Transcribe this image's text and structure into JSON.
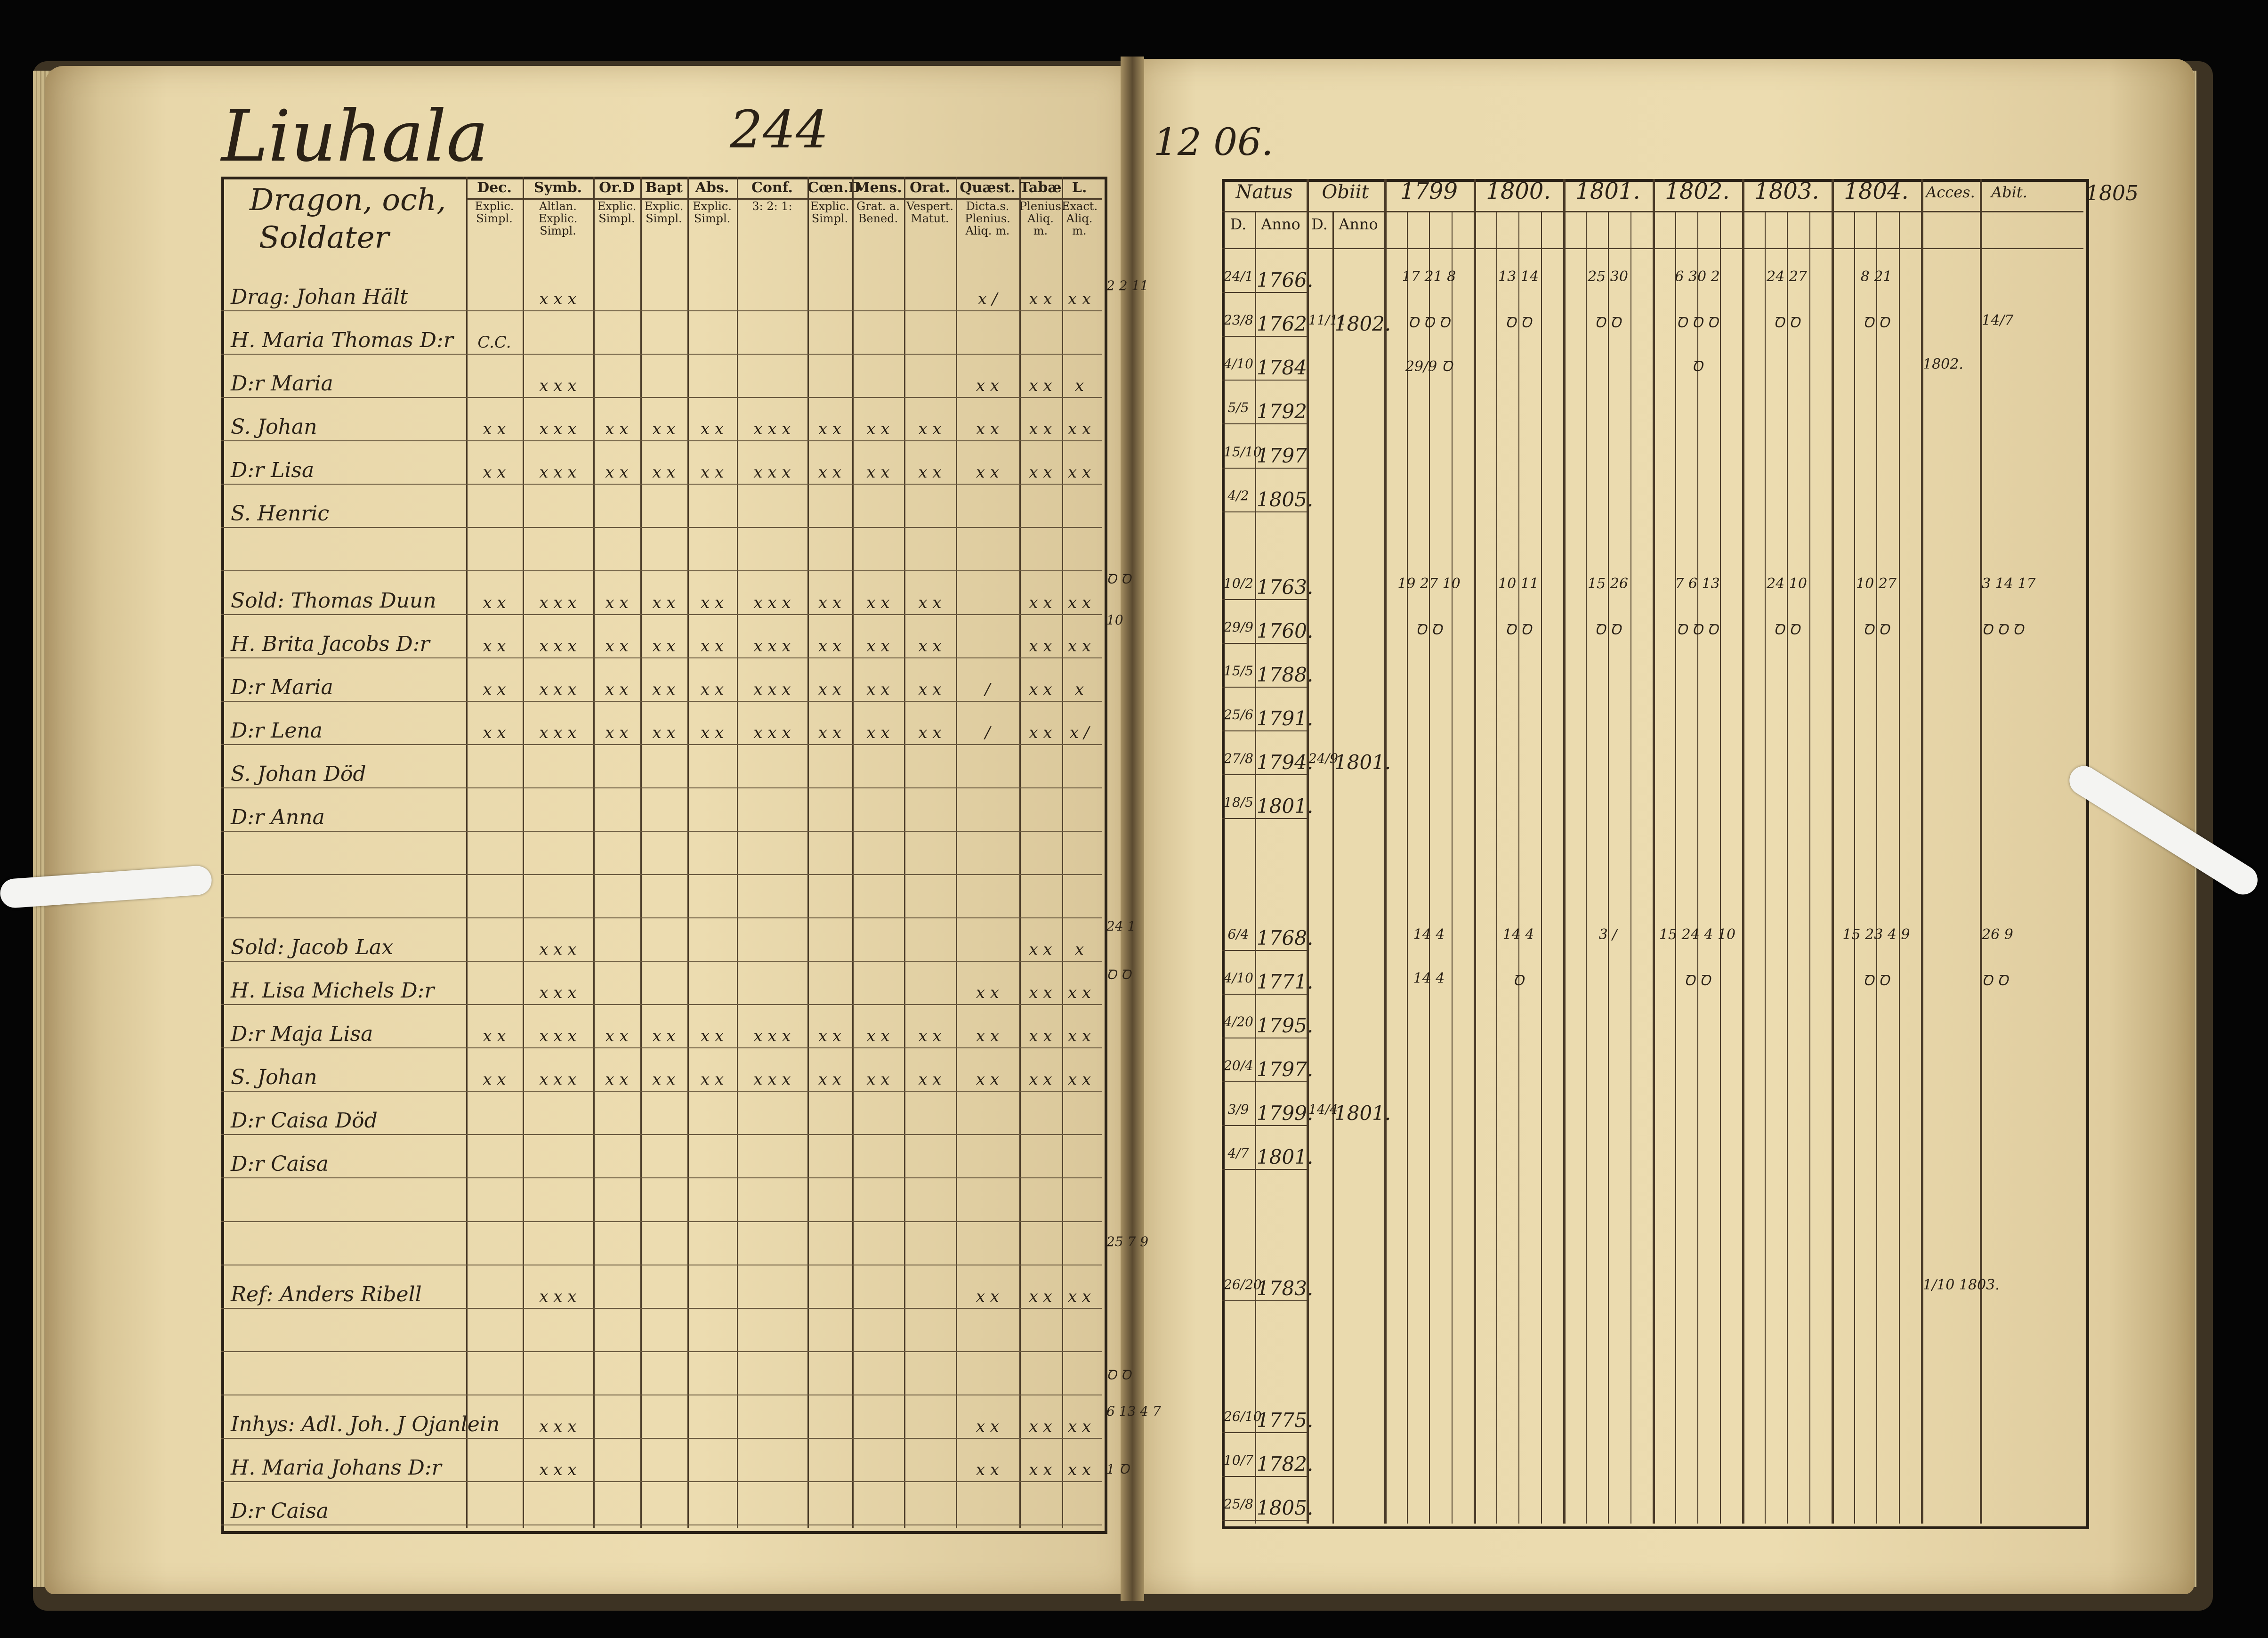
{
  "left_page": {
    "place": "Liuhala",
    "page_number": "244",
    "title_line1": "Dragon, och,",
    "title_line2": "Soldater",
    "columns": [
      {
        "top": "Dec.",
        "sub": "Explic. Simpl."
      },
      {
        "top": "Symb.",
        "sub": "Altlan. Explic. Simpl."
      },
      {
        "top": "Or.D",
        "sub": "Explic. Simpl."
      },
      {
        "top": "Bapt",
        "sub": "Explic. Simpl."
      },
      {
        "top": "Abs.",
        "sub": "Explic. Simpl."
      },
      {
        "top": "Conf.",
        "sub": "3: 2: 1:"
      },
      {
        "top": "Cœn.D",
        "sub": "Explic. Simpl."
      },
      {
        "top": "Mens.",
        "sub": "Grat. a. Bened."
      },
      {
        "top": "Orat.",
        "sub": "Vespert. Matut."
      },
      {
        "top": "Quæst.",
        "sub": "Dicta.s. Plenius. Aliq. m."
      },
      {
        "top": "Tabæ",
        "sub": "Plenius. Aliq. m."
      },
      {
        "top": "L.",
        "sub": "Exact. Aliq. m."
      }
    ],
    "rows": [
      {
        "name": "Drag: Johan Hält",
        "marks": [
          "",
          "x x x",
          "",
          "",
          "",
          "",
          "",
          "",
          "",
          "x /",
          "x x",
          "x x"
        ]
      },
      {
        "name": "H. Maria Thomas D:r",
        "marks": [
          "C.C.",
          "",
          "",
          "",
          "",
          "",
          "",
          "",
          "",
          "",
          "",
          ""
        ]
      },
      {
        "name": "D:r Maria",
        "marks": [
          "",
          "x x x",
          "",
          "",
          "",
          "",
          "",
          "",
          "",
          "x x",
          "x x",
          "x"
        ]
      },
      {
        "name": "S. Johan",
        "marks": [
          "x x",
          "x x x",
          "x x",
          "x x",
          "x x",
          "x x x",
          "x x",
          "x x",
          "x x",
          "x x",
          "x x",
          "x x"
        ]
      },
      {
        "name": "D:r Lisa",
        "marks": [
          "x x",
          "x x x",
          "x x",
          "x x",
          "x x",
          "x x x",
          "x x",
          "x x",
          "x x",
          "x x",
          "x x",
          "x x"
        ]
      },
      {
        "name": "S. Henric",
        "marks": [
          "",
          "",
          "",
          "",
          "",
          "",
          "",
          "",
          "",
          "",
          "",
          ""
        ]
      },
      {
        "name": "",
        "marks": [
          "",
          "",
          "",
          "",
          "",
          "",
          "",
          "",
          "",
          "",
          "",
          ""
        ]
      },
      {
        "name": "Sold: Thomas Duun",
        "marks": [
          "x x",
          "x x x",
          "x x",
          "x x",
          "x x",
          "x x x",
          "x x",
          "x x",
          "x x",
          "",
          "x x",
          "x x"
        ]
      },
      {
        "name": "H. Brita Jacobs D:r",
        "marks": [
          "x x",
          "x x x",
          "x x",
          "x x",
          "x x",
          "x x x",
          "x x",
          "x x",
          "x x",
          "",
          "x x",
          "x x"
        ]
      },
      {
        "name": "D:r Maria",
        "marks": [
          "x x",
          "x x x",
          "x x",
          "x x",
          "x x",
          "x x x",
          "x x",
          "x x",
          "x x",
          "/",
          "x x",
          "x"
        ]
      },
      {
        "name": "D:r Lena",
        "marks": [
          "x x",
          "x x x",
          "x x",
          "x x",
          "x x",
          "x x x",
          "x x",
          "x x",
          "x x",
          "/",
          "x x",
          "x /"
        ]
      },
      {
        "name": "S. Johan Död",
        "marks": [
          "",
          "",
          "",
          "",
          "",
          "",
          "",
          "",
          "",
          "",
          "",
          ""
        ]
      },
      {
        "name": "D:r Anna",
        "marks": [
          "",
          "",
          "",
          "",
          "",
          "",
          "",
          "",
          "",
          "",
          "",
          ""
        ]
      },
      {
        "name": "",
        "marks": [
          "",
          "",
          "",
          "",
          "",
          "",
          "",
          "",
          "",
          "",
          "",
          ""
        ]
      },
      {
        "name": "",
        "marks": [
          "",
          "",
          "",
          "",
          "",
          "",
          "",
          "",
          "",
          "",
          "",
          ""
        ]
      },
      {
        "name": "Sold: Jacob Lax",
        "marks": [
          "",
          "x x x",
          "",
          "",
          "",
          "",
          "",
          "",
          "",
          "",
          "x x",
          "x"
        ]
      },
      {
        "name": "H. Lisa Michels D:r",
        "marks": [
          "",
          "x x x",
          "",
          "",
          "",
          "",
          "",
          "",
          "",
          "x x",
          "x x",
          "x x"
        ]
      },
      {
        "name": "D:r Maja Lisa",
        "marks": [
          "x x",
          "x x x",
          "x x",
          "x x",
          "x x",
          "x x x",
          "x x",
          "x x",
          "x x",
          "x x",
          "x x",
          "x x"
        ]
      },
      {
        "name": "S. Johan",
        "marks": [
          "x x",
          "x x x",
          "x x",
          "x x",
          "x x",
          "x x x",
          "x x",
          "x x",
          "x x",
          "x x",
          "x x",
          "x x"
        ]
      },
      {
        "name": "D:r Caisa Död",
        "marks": [
          "",
          "",
          "",
          "",
          "",
          "",
          "",
          "",
          "",
          "",
          "",
          ""
        ]
      },
      {
        "name": "D:r Caisa",
        "marks": [
          "",
          "",
          "",
          "",
          "",
          "",
          "",
          "",
          "",
          "",
          "",
          ""
        ]
      },
      {
        "name": "",
        "marks": [
          "",
          "",
          "",
          "",
          "",
          "",
          "",
          "",
          "",
          "",
          "",
          ""
        ]
      },
      {
        "name": "",
        "marks": [
          "",
          "",
          "",
          "",
          "",
          "",
          "",
          "",
          "",
          "",
          "",
          ""
        ]
      },
      {
        "name": "Ref: Anders Ribell",
        "marks": [
          "",
          "x x x",
          "",
          "",
          "",
          "",
          "",
          "",
          "",
          "x x",
          "x x",
          "x x"
        ]
      },
      {
        "name": "",
        "marks": [
          "",
          "",
          "",
          "",
          "",
          "",
          "",
          "",
          "",
          "",
          "",
          ""
        ]
      },
      {
        "name": "",
        "marks": [
          "",
          "",
          "",
          "",
          "",
          "",
          "",
          "",
          "",
          "",
          "",
          ""
        ]
      },
      {
        "name": "Inhys: Adl. Joh. J Ojanlein",
        "marks": [
          "",
          "x x x",
          "",
          "",
          "",
          "",
          "",
          "",
          "",
          "x x",
          "x x",
          "x x"
        ]
      },
      {
        "name": "H. Maria Johans D:r",
        "marks": [
          "",
          "x x x",
          "",
          "",
          "",
          "",
          "",
          "",
          "",
          "x x",
          "x x",
          "x x"
        ]
      },
      {
        "name": "D:r Caisa",
        "marks": [
          "",
          "",
          "",
          "",
          "",
          "",
          "",
          "",
          "",
          "",
          "",
          ""
        ]
      }
    ]
  },
  "right_page": {
    "folio": "12 06.",
    "headers": {
      "natus": "Natus",
      "natus_d": "D.",
      "natus_anno": "Anno",
      "obiit": "Obiit",
      "obiit_d": "D.",
      "obiit_anno": "Anno",
      "years": [
        "1799",
        "1800.",
        "1801.",
        "1802.",
        "1803.",
        "1804."
      ],
      "accessit": "Acces.",
      "abiit": "Abit.",
      "margin_year": "1805"
    },
    "rows": [
      {
        "natus_d": "24/1",
        "natus_anno": "1766.",
        "obiit_d": "",
        "obiit_anno": "",
        "marks": [
          "17 21 8",
          "13 14",
          "25 30",
          "6 30 2",
          "24 27",
          "8 21"
        ],
        "acces": "",
        "abit": ""
      },
      {
        "natus_d": "23/8",
        "natus_anno": "1762",
        "obiit_d": "11/11",
        "obiit_anno": "1802.",
        "marks": [
          "Ꝺ Ꝺ Ꝺ",
          "Ꝺ Ꝺ",
          "Ꝺ Ꝺ",
          "Ꝺ Ꝺ Ꝺ",
          "Ꝺ Ꝺ",
          "Ꝺ Ꝺ"
        ],
        "acces": "",
        "abit": "14/7"
      },
      {
        "natus_d": "4/10",
        "natus_anno": "1784",
        "obiit_d": "",
        "obiit_anno": "",
        "marks": [
          "29/9 Ꝺ",
          "",
          "",
          "Ꝺ",
          "",
          ""
        ],
        "acces": "1802.",
        "abit": ""
      },
      {
        "natus_d": "5/5",
        "natus_anno": "1792",
        "obiit_d": "",
        "obiit_anno": "",
        "marks": [
          "",
          "",
          "",
          "",
          "",
          ""
        ],
        "acces": "",
        "abit": ""
      },
      {
        "natus_d": "15/10",
        "natus_anno": "1797",
        "obiit_d": "",
        "obiit_anno": "",
        "marks": [
          "",
          "",
          "",
          "",
          "",
          ""
        ],
        "acces": "",
        "abit": ""
      },
      {
        "natus_d": "4/2",
        "natus_anno": "1805.",
        "obiit_d": "",
        "obiit_anno": "",
        "marks": [
          "",
          "",
          "",
          "",
          "",
          ""
        ],
        "acces": "",
        "abit": ""
      },
      {
        "natus_d": "",
        "natus_anno": "",
        "obiit_d": "",
        "obiit_anno": "",
        "marks": [
          "",
          "",
          "",
          "",
          "",
          ""
        ],
        "acces": "",
        "abit": ""
      },
      {
        "natus_d": "10/2",
        "natus_anno": "1763.",
        "obiit_d": "",
        "obiit_anno": "",
        "marks": [
          "19 27 10",
          "10 11",
          "15 26",
          "7 6 13",
          "24 10",
          "10 27"
        ],
        "acces": "",
        "abit": "3 14 17"
      },
      {
        "natus_d": "29/9",
        "natus_anno": "1760.",
        "obiit_d": "",
        "obiit_anno": "",
        "marks": [
          "Ꝺ Ꝺ",
          "Ꝺ Ꝺ",
          "Ꝺ Ꝺ",
          "Ꝺ Ꝺ Ꝺ",
          "Ꝺ Ꝺ",
          "Ꝺ Ꝺ"
        ],
        "acces": "",
        "abit": "Ꝺ Ꝺ Ꝺ"
      },
      {
        "natus_d": "15/5",
        "natus_anno": "1788.",
        "obiit_d": "",
        "obiit_anno": "",
        "marks": [
          "",
          "",
          "",
          "",
          "",
          ""
        ],
        "acces": "",
        "abit": ""
      },
      {
        "natus_d": "25/6",
        "natus_anno": "1791.",
        "obiit_d": "",
        "obiit_anno": "",
        "marks": [
          "",
          "",
          "",
          "",
          "",
          ""
        ],
        "acces": "",
        "abit": ""
      },
      {
        "natus_d": "27/8",
        "natus_anno": "1794.",
        "obiit_d": "24/9",
        "obiit_anno": "1801.",
        "marks": [
          "",
          "",
          "",
          "",
          "",
          ""
        ],
        "acces": "",
        "abit": ""
      },
      {
        "natus_d": "18/5",
        "natus_anno": "1801.",
        "obiit_d": "",
        "obiit_anno": "",
        "marks": [
          "",
          "",
          "",
          "",
          "",
          ""
        ],
        "acces": "",
        "abit": ""
      },
      {
        "natus_d": "",
        "natus_anno": "",
        "obiit_d": "",
        "obiit_anno": "",
        "marks": [
          "",
          "",
          "",
          "",
          "",
          ""
        ],
        "acces": "",
        "abit": ""
      },
      {
        "natus_d": "",
        "natus_anno": "",
        "obiit_d": "",
        "obiit_anno": "",
        "marks": [
          "",
          "",
          "",
          "",
          "",
          ""
        ],
        "acces": "",
        "abit": ""
      },
      {
        "natus_d": "6/4",
        "natus_anno": "1768.",
        "obiit_d": "",
        "obiit_anno": "",
        "marks": [
          "14 4",
          "14 4",
          "3 /",
          "15 24 4 10",
          "",
          "15 23 4 9"
        ],
        "acces": "",
        "abit": "26 9"
      },
      {
        "natus_d": "4/10",
        "natus_anno": "1771.",
        "obiit_d": "",
        "obiit_anno": "",
        "marks": [
          "14 4",
          "Ꝺ",
          "",
          "Ꝺ Ꝺ",
          "",
          "Ꝺ Ꝺ"
        ],
        "acces": "",
        "abit": "Ꝺ Ꝺ"
      },
      {
        "natus_d": "4/20",
        "natus_anno": "1795.",
        "obiit_d": "",
        "obiit_anno": "",
        "marks": [
          "",
          "",
          "",
          "",
          "",
          ""
        ],
        "acces": "",
        "abit": ""
      },
      {
        "natus_d": "20/4",
        "natus_anno": "1797.",
        "obiit_d": "",
        "obiit_anno": "",
        "marks": [
          "",
          "",
          "",
          "",
          "",
          ""
        ],
        "acces": "",
        "abit": ""
      },
      {
        "natus_d": "3/9",
        "natus_anno": "1799.",
        "obiit_d": "14/4",
        "obiit_anno": "1801.",
        "marks": [
          "",
          "",
          "",
          "",
          "",
          ""
        ],
        "acces": "",
        "abit": ""
      },
      {
        "natus_d": "4/7",
        "natus_anno": "1801.",
        "obiit_d": "",
        "obiit_anno": "",
        "marks": [
          "",
          "",
          "",
          "",
          "",
          ""
        ],
        "acces": "",
        "abit": ""
      },
      {
        "natus_d": "",
        "natus_anno": "",
        "obiit_d": "",
        "obiit_anno": "",
        "marks": [
          "",
          "",
          "",
          "",
          "",
          ""
        ],
        "acces": "",
        "abit": ""
      },
      {
        "natus_d": "",
        "natus_anno": "",
        "obiit_d": "",
        "obiit_anno": "",
        "marks": [
          "",
          "",
          "",
          "",
          "",
          ""
        ],
        "acces": "",
        "abit": ""
      },
      {
        "natus_d": "26/20",
        "natus_anno": "1783.",
        "obiit_d": "",
        "obiit_anno": "",
        "marks": [
          "",
          "",
          "",
          "",
          "",
          ""
        ],
        "acces": "1/10 1803.",
        "abit": ""
      },
      {
        "natus_d": "",
        "natus_anno": "",
        "obiit_d": "",
        "obiit_anno": "",
        "marks": [
          "",
          "",
          "",
          "",
          "",
          ""
        ],
        "acces": "",
        "abit": ""
      },
      {
        "natus_d": "",
        "natus_anno": "",
        "obiit_d": "",
        "obiit_anno": "",
        "marks": [
          "",
          "",
          "",
          "",
          "",
          ""
        ],
        "acces": "",
        "abit": ""
      },
      {
        "natus_d": "26/10",
        "natus_anno": "1775.",
        "obiit_d": "",
        "obiit_anno": "",
        "marks": [
          "",
          "",
          "",
          "",
          "",
          ""
        ],
        "acces": "",
        "abit": ""
      },
      {
        "natus_d": "10/7",
        "natus_anno": "1782.",
        "obiit_d": "",
        "obiit_anno": "",
        "marks": [
          "",
          "",
          "",
          "",
          "",
          ""
        ],
        "acces": "",
        "abit": ""
      },
      {
        "natus_d": "25/8",
        "natus_anno": "1805.",
        "obiit_d": "",
        "obiit_anno": "",
        "marks": [
          "",
          "",
          "",
          "",
          "",
          ""
        ],
        "acces": "",
        "abit": ""
      }
    ]
  },
  "margin_notes_left": [
    "2 2 11",
    "Ꝺ Ꝺ",
    "10",
    "24 1",
    "Ꝺ Ꝺ",
    "25 7 9",
    "Ꝺ Ꝺ",
    "6 13 4 7",
    "1 Ꝺ"
  ]
}
